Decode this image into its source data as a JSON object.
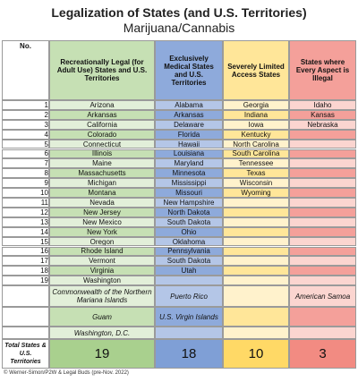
{
  "title": [
    "Legalization of States (and U.S. Territories)",
    "Marijuana/Cannabis"
  ],
  "table": {
    "number_header": "No.",
    "row_numbers": [
      "1",
      "2",
      "3",
      "4",
      "5",
      "6",
      "7",
      "8",
      "9",
      "10",
      "11",
      "12",
      "13",
      "14",
      "15",
      "16",
      "17",
      "18",
      "19"
    ],
    "columns": [
      {
        "header": "Recreationally Legal (for Adult Use) States and U.S. Territories",
        "states": [
          "Arizona",
          "Arkansas",
          "California",
          "Colorado",
          "Connecticut",
          "Illinois",
          "Maine",
          "Massachusetts",
          "Michigan",
          "Montana",
          "Nevada",
          "New Jersey",
          "New Mexico",
          "New York",
          "Oregon",
          "Rhode Island",
          "Vermont",
          "Virginia",
          "Washington"
        ],
        "territories": [
          "Commonwealth of the Northern Mariana Islands",
          "Guam",
          "Washington, D.C."
        ],
        "total": "19"
      },
      {
        "header": "Exclusively Medical States and U.S. Territories",
        "states": [
          "Alabama",
          "Arkansas",
          "Delaware",
          "Florida",
          "Hawaii",
          "Louisiana",
          "Maryland",
          "Minnesota",
          "Mississippi",
          "Missouri",
          "New Hampshire",
          "North Dakota",
          "South Dakota",
          "Ohio",
          "Oklahoma",
          "Pennsylvania",
          "South Dakota",
          "Utah"
        ],
        "territories": [
          "Puerto Rico",
          "U.S. Virgin Islands"
        ],
        "total": "18"
      },
      {
        "header": "Severely Limited Access States",
        "states": [
          "Georgia",
          "Indiana",
          "Iowa",
          "Kentucky",
          "North Carolina",
          "South Carolina",
          "Tennessee",
          "Texas",
          "Wisconsin",
          "Wyoming"
        ],
        "territories": [],
        "total": "10"
      },
      {
        "header": "States where Every Aspect is Illegal",
        "states": [
          "Idaho",
          "Kansas",
          "Nebraska"
        ],
        "territories": [
          "American Samoa"
        ],
        "total": "3"
      }
    ],
    "total_label": "Total States & U.S. Territories"
  },
  "footer": "© Werner-Simon/P2W & Legal Buds (pre-Nov. 2022)"
}
